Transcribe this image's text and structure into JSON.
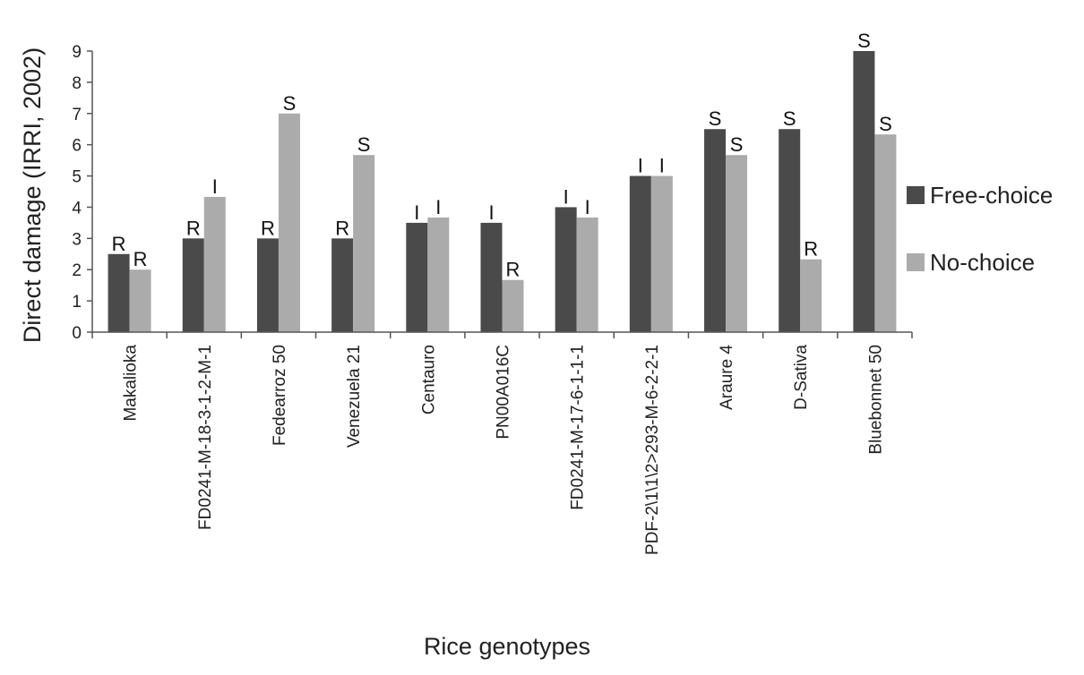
{
  "chart_data": {
    "type": "bar",
    "title": "",
    "xlabel": "Rice genotypes",
    "ylabel": "Direct damage (IRRI, 2002)",
    "ylim": [
      0,
      9
    ],
    "yticks": [
      "0",
      "1",
      "2",
      "3",
      "4",
      "5",
      "6",
      "7",
      "8",
      "9"
    ],
    "grid": false,
    "legend_position": "right",
    "categories": [
      "Makalioka",
      "FD0241-M-18-3-1-2-M-1",
      "Fedearroz 50",
      "Venezuela 21",
      "Centauro",
      "PN00A016C",
      "FD0241-M-17-6-1-1-1",
      "PDF-2\\1\\1\\2>293-M-6-2-2-1",
      "Araure 4",
      "D-Sativa",
      "Bluebonnet 50"
    ],
    "series": [
      {
        "name": "Free-choice",
        "color": "#4a4a4a",
        "values": [
          2.5,
          3,
          3,
          3,
          3.5,
          3.5,
          4,
          5,
          6.5,
          6.5,
          9
        ],
        "labels": [
          "R",
          "R",
          "R",
          "R",
          "I",
          "I",
          "I",
          "I",
          "S",
          "S",
          "S"
        ]
      },
      {
        "name": "No-choice",
        "color": "#ababab",
        "values": [
          2,
          4.33,
          7,
          5.67,
          3.67,
          1.67,
          3.67,
          5,
          5.67,
          2.33,
          6.33
        ],
        "labels": [
          "R",
          "I",
          "S",
          "S",
          "I",
          "R",
          "I",
          "I",
          "S",
          "R",
          "S"
        ]
      }
    ]
  }
}
